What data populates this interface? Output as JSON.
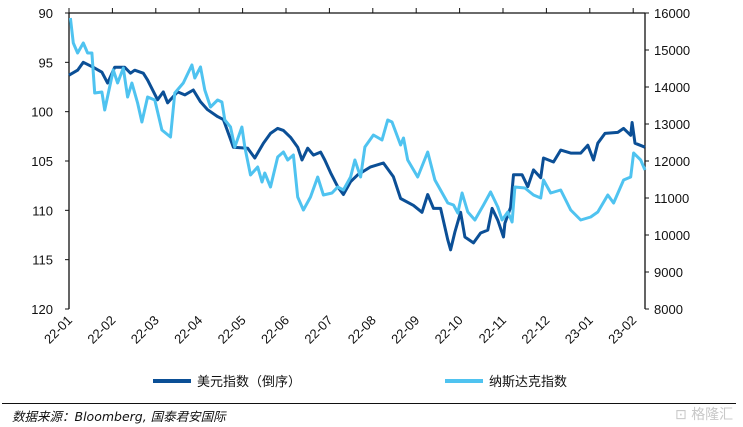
{
  "chart_data": {
    "type": "line",
    "title": "",
    "x_unit": "days since 2022-01-01",
    "x_range": [
      0,
      403
    ],
    "x_tick_labels": [
      "22-01",
      "22-02",
      "22-03",
      "22-04",
      "22-05",
      "22-06",
      "22-07",
      "22-08",
      "22-09",
      "22-10",
      "22-11",
      "22-12",
      "23-01",
      "23-02"
    ],
    "y_left": {
      "ticks": [
        "90",
        "95",
        "100",
        "105",
        "110",
        "115",
        "120"
      ],
      "range": [
        90,
        120
      ],
      "inverted": true
    },
    "y_right": {
      "ticks": [
        "16000",
        "15000",
        "14000",
        "13000",
        "12000",
        "11000",
        "10000",
        "9000",
        "8000"
      ],
      "range": [
        8000,
        16000
      ]
    },
    "legend_position": "bottom",
    "series": [
      {
        "name": "美元指数（倒序）",
        "axis": "left",
        "color": "#0b4f96",
        "points": [
          [
            0,
            96.3
          ],
          [
            6,
            95.8
          ],
          [
            10,
            95.0
          ],
          [
            17,
            95.5
          ],
          [
            23,
            96.0
          ],
          [
            27,
            97.1
          ],
          [
            32,
            95.5
          ],
          [
            39,
            95.5
          ],
          [
            43,
            96.1
          ],
          [
            46,
            95.8
          ],
          [
            52,
            96.1
          ],
          [
            55,
            96.8
          ],
          [
            62,
            98.8
          ],
          [
            66,
            98.0
          ],
          [
            69,
            99.1
          ],
          [
            76,
            98.0
          ],
          [
            81,
            98.3
          ],
          [
            87,
            97.8
          ],
          [
            92,
            99.0
          ],
          [
            97,
            99.8
          ],
          [
            104,
            100.5
          ],
          [
            108,
            100.8
          ],
          [
            115,
            103.6
          ],
          [
            125,
            103.7
          ],
          [
            130,
            104.7
          ],
          [
            136,
            103.2
          ],
          [
            141,
            102.2
          ],
          [
            146,
            101.7
          ],
          [
            150,
            101.9
          ],
          [
            155,
            102.6
          ],
          [
            160,
            103.6
          ],
          [
            163,
            104.9
          ],
          [
            167,
            103.7
          ],
          [
            171,
            104.4
          ],
          [
            176,
            104.1
          ],
          [
            179,
            104.9
          ],
          [
            183,
            106.2
          ],
          [
            188,
            107.6
          ],
          [
            192,
            108.4
          ],
          [
            197,
            107.1
          ],
          [
            202,
            106.4
          ],
          [
            211,
            105.6
          ],
          [
            220,
            105.2
          ],
          [
            227,
            106.6
          ],
          [
            232,
            108.8
          ],
          [
            241,
            109.5
          ],
          [
            247,
            110.2
          ],
          [
            251,
            108.4
          ],
          [
            255,
            109.8
          ],
          [
            260,
            109.8
          ],
          [
            265,
            113.0
          ],
          [
            267,
            114.0
          ],
          [
            270,
            112.2
          ],
          [
            274,
            110.2
          ],
          [
            277,
            112.7
          ],
          [
            283,
            113.3
          ],
          [
            288,
            112.3
          ],
          [
            293,
            112.0
          ],
          [
            296,
            109.8
          ],
          [
            300,
            111.0
          ],
          [
            304,
            112.7
          ],
          [
            305,
            111.3
          ],
          [
            309,
            109.7
          ],
          [
            311,
            106.4
          ],
          [
            317,
            106.4
          ],
          [
            321,
            107.6
          ],
          [
            325,
            105.9
          ],
          [
            330,
            106.7
          ],
          [
            332,
            104.7
          ],
          [
            339,
            105.1
          ],
          [
            344,
            103.9
          ],
          [
            351,
            104.2
          ],
          [
            358,
            104.2
          ],
          [
            363,
            103.4
          ],
          [
            367,
            104.9
          ],
          [
            370,
            103.2
          ],
          [
            375,
            102.2
          ],
          [
            384,
            102.1
          ],
          [
            388,
            101.7
          ],
          [
            393,
            102.4
          ],
          [
            394,
            101.1
          ],
          [
            396,
            103.2
          ],
          [
            403,
            103.6
          ]
        ]
      },
      {
        "name": "纳斯达克指数",
        "axis": "right",
        "color": "#4fc3f0",
        "points": [
          [
            1,
            15865
          ],
          [
            3,
            15189
          ],
          [
            6,
            14919
          ],
          [
            10,
            15189
          ],
          [
            13,
            14919
          ],
          [
            16,
            14919
          ],
          [
            18,
            13838
          ],
          [
            23,
            13865
          ],
          [
            25,
            13378
          ],
          [
            31,
            14459
          ],
          [
            34,
            14108
          ],
          [
            38,
            14513
          ],
          [
            41,
            13730
          ],
          [
            44,
            14108
          ],
          [
            48,
            13568
          ],
          [
            51,
            13054
          ],
          [
            55,
            13730
          ],
          [
            60,
            13649
          ],
          [
            65,
            12838
          ],
          [
            71,
            12649
          ],
          [
            74,
            13838
          ],
          [
            80,
            14108
          ],
          [
            86,
            14595
          ],
          [
            88,
            14243
          ],
          [
            92,
            14540
          ],
          [
            95,
            13919
          ],
          [
            99,
            13459
          ],
          [
            104,
            13649
          ],
          [
            107,
            13595
          ],
          [
            109,
            13108
          ],
          [
            113,
            12919
          ],
          [
            116,
            12378
          ],
          [
            121,
            12919
          ],
          [
            123,
            12378
          ],
          [
            127,
            11622
          ],
          [
            132,
            11838
          ],
          [
            135,
            11432
          ],
          [
            137,
            11676
          ],
          [
            141,
            11297
          ],
          [
            146,
            12108
          ],
          [
            150,
            12243
          ],
          [
            153,
            12027
          ],
          [
            157,
            12162
          ],
          [
            160,
            11027
          ],
          [
            164,
            10676
          ],
          [
            169,
            11027
          ],
          [
            174,
            11568
          ],
          [
            178,
            11081
          ],
          [
            184,
            11135
          ],
          [
            188,
            11297
          ],
          [
            192,
            11216
          ],
          [
            197,
            11568
          ],
          [
            200,
            12027
          ],
          [
            204,
            11568
          ],
          [
            207,
            12378
          ],
          [
            213,
            12703
          ],
          [
            219,
            12568
          ],
          [
            223,
            13108
          ],
          [
            226,
            13054
          ],
          [
            232,
            12432
          ],
          [
            234,
            12622
          ],
          [
            237,
            12027
          ],
          [
            244,
            11568
          ],
          [
            251,
            12243
          ],
          [
            256,
            11486
          ],
          [
            265,
            10865
          ],
          [
            269,
            10811
          ],
          [
            272,
            10595
          ],
          [
            275,
            11135
          ],
          [
            279,
            10622
          ],
          [
            284,
            10405
          ],
          [
            290,
            10811
          ],
          [
            295,
            11162
          ],
          [
            300,
            10757
          ],
          [
            303,
            10405
          ],
          [
            307,
            10622
          ],
          [
            310,
            10351
          ],
          [
            312,
            11297
          ],
          [
            319,
            11270
          ],
          [
            325,
            11081
          ],
          [
            330,
            11000
          ],
          [
            332,
            11486
          ],
          [
            337,
            11135
          ],
          [
            344,
            11216
          ],
          [
            351,
            10676
          ],
          [
            358,
            10405
          ],
          [
            365,
            10486
          ],
          [
            370,
            10622
          ],
          [
            377,
            11081
          ],
          [
            381,
            10865
          ],
          [
            388,
            11486
          ],
          [
            393,
            11568
          ],
          [
            395,
            12216
          ],
          [
            400,
            12027
          ],
          [
            403,
            11757
          ]
        ]
      }
    ]
  },
  "legend": {
    "usd_label": "美元指数（倒序）",
    "nasdaq_label": "纳斯达克指数"
  },
  "source": "数据来源：Bloomberg, 国泰君安国际",
  "watermark": "格隆汇"
}
